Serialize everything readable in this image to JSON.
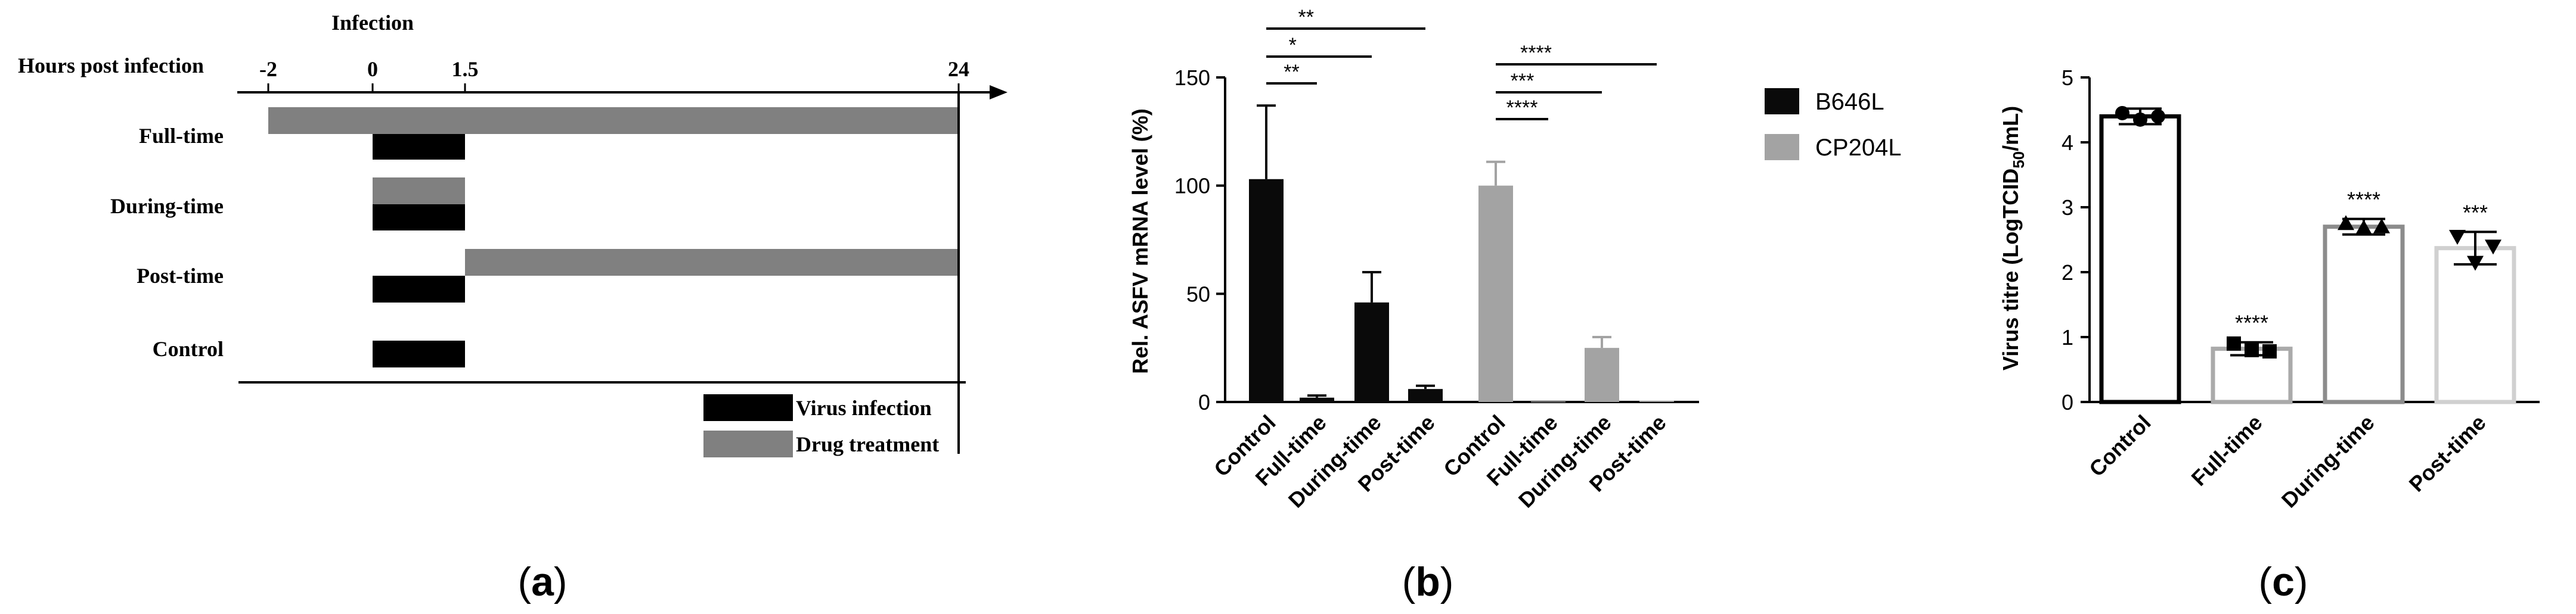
{
  "colors": {
    "black": "#000000",
    "dark": "#0a0a0a",
    "gray": "#8a8a8a",
    "lightgray": "#a3a3a3",
    "drug": "#808080",
    "c_full": "#aaaaaa",
    "c_during": "#8c8c8c",
    "c_post": "#d0d0d0"
  },
  "panel_labels": {
    "a": "(a)",
    "b": "(b)",
    "c": "(c)"
  },
  "chart_data": [
    {
      "type": "table",
      "panel": "a",
      "title": "Infection",
      "axis_label": "Hours post infection",
      "ticks": [
        {
          "label": "-2",
          "value": -2
        },
        {
          "label": "0",
          "value": 0
        },
        {
          "label": "1.5",
          "value": 1.5
        },
        {
          "label": "24",
          "value": 24
        }
      ],
      "rows": [
        {
          "name": "Full-time",
          "drug": [
            -2,
            24
          ],
          "virus": [
            0,
            1.5
          ]
        },
        {
          "name": "During-time",
          "drug": [
            0,
            1.5
          ],
          "virus": [
            0,
            1.5
          ]
        },
        {
          "name": "Post-time",
          "drug": [
            1.5,
            24
          ],
          "virus": [
            0,
            1.5
          ]
        },
        {
          "name": "Control",
          "drug": null,
          "virus": [
            0,
            1.5
          ]
        }
      ],
      "legend": {
        "virus": "Virus infection",
        "drug": "Drug treatment"
      }
    },
    {
      "type": "bar",
      "panel": "b",
      "ylabel": "Rel. ASFV mRNA level (%)",
      "ylim": [
        0,
        150
      ],
      "yticks": [
        "0",
        "50",
        "100",
        "150"
      ],
      "categories": [
        "Control",
        "Full-time",
        "During-time",
        "Post-time"
      ],
      "series": [
        {
          "name": "B646L",
          "values": [
            103,
            2,
            46,
            6
          ],
          "errors": [
            34,
            1,
            14,
            1.5
          ]
        },
        {
          "name": "CP204L",
          "values": [
            100,
            0.3,
            25,
            0.5
          ],
          "errors": [
            11,
            0.2,
            5,
            0.3
          ]
        }
      ],
      "significance": [
        {
          "series": 0,
          "from": 0,
          "to": 1,
          "label": "**"
        },
        {
          "series": 0,
          "from": 0,
          "to": 2,
          "label": "*"
        },
        {
          "series": 0,
          "from": 0,
          "to": 3,
          "label": "**"
        },
        {
          "series": 1,
          "from": 0,
          "to": 1,
          "label": "****"
        },
        {
          "series": 1,
          "from": 0,
          "to": 2,
          "label": "***"
        },
        {
          "series": 1,
          "from": 0,
          "to": 3,
          "label": "****"
        }
      ]
    },
    {
      "type": "bar",
      "panel": "c",
      "ylabel_main": "Virus titre (LogTCID",
      "ylabel_sub": "50",
      "ylabel_tail": "/mL)",
      "ylim": [
        0,
        5
      ],
      "yticks": [
        "0",
        "1",
        "2",
        "3",
        "4",
        "5"
      ],
      "categories": [
        "Control",
        "Full-time",
        "During-time",
        "Post-time"
      ],
      "values": [
        4.4,
        0.82,
        2.7,
        2.37
      ],
      "errors": [
        0.12,
        0.1,
        0.12,
        0.25
      ],
      "points": [
        [
          4.45,
          4.35,
          4.4
        ],
        [
          0.9,
          0.8,
          0.78
        ],
        [
          2.75,
          2.68,
          2.7
        ],
        [
          2.55,
          2.15,
          2.4
        ]
      ],
      "markers": [
        "circle",
        "square",
        "triangle",
        "triangle-down"
      ],
      "annotations": [
        "",
        "****",
        "****",
        "***"
      ]
    }
  ]
}
